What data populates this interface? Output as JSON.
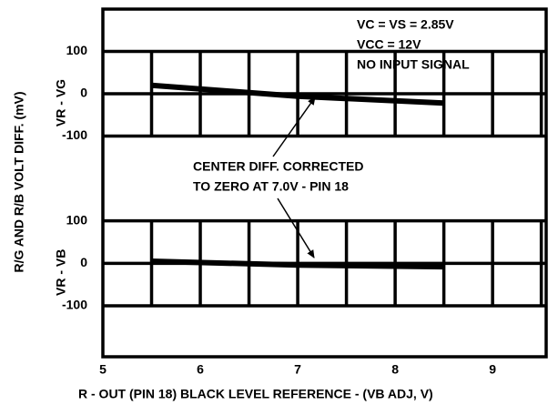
{
  "chart_data": [
    {
      "type": "line",
      "ylabel": "R/G AND R/B VOLT DIFF. (mV)",
      "panel_label": "VR - VG",
      "annotations": [
        "VC = VS = 2.85V",
        "VCC = 12V",
        "NO INPUT SIGNAL",
        "CENTER DIFF. CORRECTED",
        "TO ZERO AT 7.0V - PIN 18"
      ],
      "x": [
        5.5,
        7,
        8.5
      ],
      "series": [
        {
          "color": "#000000",
          "values": [
            20,
            -6,
            -22
          ]
        }
      ],
      "ylim": [
        -200,
        200
      ],
      "yticks": [
        100,
        0,
        -100
      ],
      "xlim": [
        5,
        9.55
      ],
      "xgrid": [
        5.5,
        6,
        6.5,
        7,
        7.5,
        8,
        8.5,
        9,
        9.5
      ]
    },
    {
      "type": "line",
      "panel_label": "VR - VB",
      "xlabel": "R - OUT (PIN 18) BLACK LEVEL REFERENCE - (VB ADJ, V)",
      "x": [
        5.5,
        7,
        8.5
      ],
      "series": [
        {
          "color": "#000000",
          "values": [
            5,
            -4,
            -8
          ]
        }
      ],
      "ylim": [
        -220,
        200
      ],
      "yticks": [
        100,
        0,
        -100
      ],
      "xlim": [
        5,
        9.55
      ],
      "xticks": [
        5,
        6,
        7,
        8,
        9
      ],
      "xgrid": [
        5.5,
        6,
        6.5,
        7,
        7.5,
        8,
        8.5,
        9,
        9.5
      ]
    }
  ]
}
